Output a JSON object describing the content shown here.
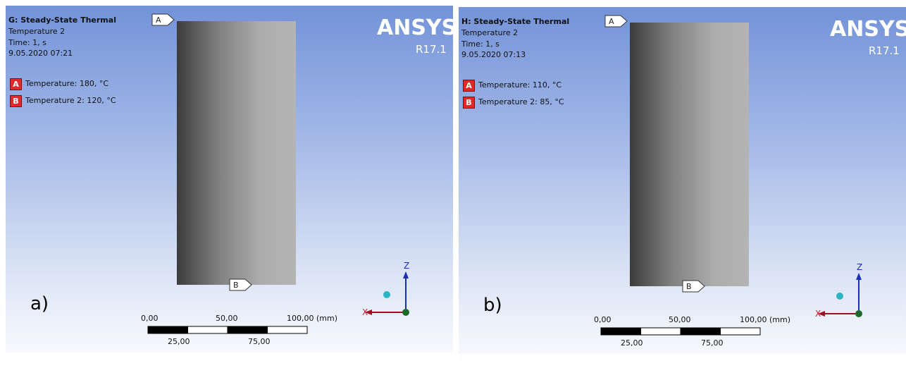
{
  "panels": [
    {
      "label": "a)",
      "title": "G: Steady-State Thermal",
      "result": "Temperature 2",
      "time": "Time: 1, s",
      "date": "9.05.2020 07:21",
      "legend": [
        {
          "key": "A",
          "text": "Temperature: 180, °C"
        },
        {
          "key": "B",
          "text": "Temperature 2: 120, °C"
        }
      ],
      "brand": "ANSYS",
      "version": "R17.1",
      "markers": [
        "A",
        "B"
      ],
      "scale": {
        "top": [
          "0,00",
          "50,00",
          "100,00 (mm)"
        ],
        "bottom": [
          "25,00",
          "75,00"
        ]
      },
      "axes": [
        "Z",
        "X"
      ]
    },
    {
      "label": "b)",
      "title": "H: Steady-State Thermal",
      "result": "Temperature 2",
      "time": "Time: 1, s",
      "date": "9.05.2020 07:13",
      "legend": [
        {
          "key": "A",
          "text": "Temperature: 110, °C"
        },
        {
          "key": "B",
          "text": "Temperature 2: 85, °C"
        }
      ],
      "brand": "ANSYS",
      "version": "R17.1",
      "markers": [
        "A",
        "B"
      ],
      "scale": {
        "top": [
          "0,00",
          "50,00",
          "100,00 (mm)"
        ],
        "bottom": [
          "25,00",
          "75,00"
        ]
      },
      "axes": [
        "Z",
        "X"
      ]
    }
  ]
}
